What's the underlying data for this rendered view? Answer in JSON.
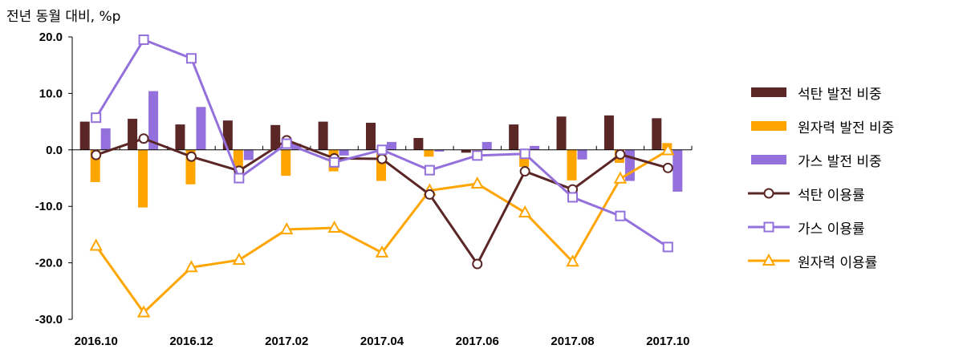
{
  "chart_data": {
    "type": "bar",
    "ylabel": "전년 동월 대비, %p",
    "ylim": [
      -30,
      20
    ],
    "yticks": [
      "20.0",
      "10.0",
      "0.0",
      "-10.0",
      "-20.0",
      "-30.0"
    ],
    "ytick_values": [
      20,
      10,
      0,
      -10,
      -20,
      -30
    ],
    "categories": [
      "2016.10",
      "2016.11",
      "2016.12",
      "2017.01",
      "2017.02",
      "2017.03",
      "2017.04",
      "2017.05",
      "2017.06",
      "2017.07",
      "2017.08",
      "2017.09",
      "2017.10"
    ],
    "xtick_labels": [
      "2016.10",
      "",
      "2016.12",
      "",
      "2017.02",
      "",
      "2017.04",
      "",
      "2017.06",
      "",
      "2017.08",
      "",
      "2017.10"
    ],
    "grid": false,
    "legend_position": "right",
    "series": [
      {
        "name": "석탄 발전 비중",
        "kind": "bar",
        "color": "#5b2626",
        "values": [
          5.0,
          5.5,
          4.5,
          5.2,
          4.4,
          5.0,
          4.8,
          2.1,
          -0.5,
          4.5,
          5.9,
          6.1,
          5.6
        ]
      },
      {
        "name": "원자력 발전 비중",
        "kind": "bar",
        "color": "#ffa500",
        "values": [
          -5.7,
          -10.2,
          -6.1,
          -3.5,
          -4.6,
          -3.8,
          -5.5,
          -1.2,
          -0.1,
          -3.0,
          -5.4,
          -2.3,
          1.2
        ]
      },
      {
        "name": "가스 발전 비중",
        "kind": "bar",
        "color": "#9370db",
        "values": [
          3.8,
          10.4,
          7.6,
          -1.8,
          1.1,
          -1.0,
          1.4,
          -0.3,
          1.4,
          0.7,
          -1.7,
          -5.5,
          -7.4
        ]
      },
      {
        "name": "석탄 이용률",
        "kind": "line",
        "marker": "circle",
        "color": "#5b2626",
        "values": [
          -0.9,
          2.0,
          -1.2,
          -3.7,
          1.7,
          -1.5,
          -1.6,
          -7.9,
          -20.2,
          -3.8,
          -7.0,
          -0.8,
          -3.2
        ]
      },
      {
        "name": "가스 이용률",
        "kind": "line",
        "marker": "square",
        "color": "#9370db",
        "values": [
          5.7,
          19.5,
          16.2,
          -5.0,
          1.1,
          -2.2,
          0.0,
          -3.6,
          -1.0,
          -0.7,
          -8.4,
          -11.7,
          -17.2
        ]
      },
      {
        "name": "원자력 이용률",
        "kind": "line",
        "marker": "triangle",
        "color": "#ffa500",
        "values": [
          -17.0,
          -28.8,
          -20.8,
          -19.5,
          -14.1,
          -13.8,
          -18.2,
          -7.2,
          -6.0,
          -11.1,
          -19.8,
          -5.1,
          -0.1
        ]
      }
    ]
  }
}
